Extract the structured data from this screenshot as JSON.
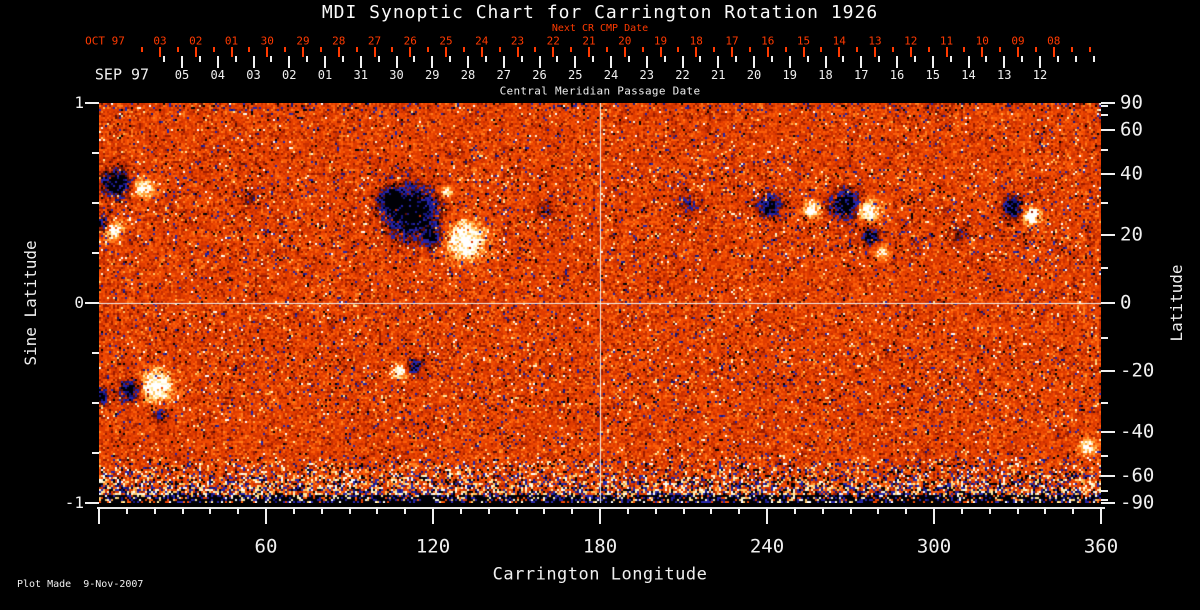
{
  "title": "MDI Synoptic Chart for Carrington Rotation 1926",
  "colors": {
    "axis_red": "#ff3a00",
    "text": "#f0f0f0",
    "background": "#000000",
    "gridline": "#f0f0f0"
  },
  "top_axis_next": {
    "label": "Next CR CMP Date",
    "month_label": "OCT 97",
    "tick_labels": [
      "03",
      "02",
      "01",
      "30",
      "29",
      "28",
      "27",
      "26",
      "25",
      "24",
      "23",
      "22",
      "21",
      "20",
      "19",
      "18",
      "17",
      "16",
      "15",
      "14",
      "13",
      "12",
      "11",
      "10",
      "09",
      "08"
    ]
  },
  "top_axis_cmp": {
    "title": "Central Meridian Passage Date",
    "month_label": "SEP 97",
    "tick_labels": [
      "05",
      "04",
      "03",
      "02",
      "01",
      "31",
      "30",
      "29",
      "28",
      "27",
      "26",
      "25",
      "24",
      "23",
      "22",
      "21",
      "20",
      "19",
      "18",
      "17",
      "16",
      "15",
      "14",
      "13",
      "12"
    ]
  },
  "left_axis": {
    "title": "Sine Latitude",
    "tick_labels": [
      "1",
      "0",
      "-1"
    ],
    "tick_values": [
      1,
      0,
      -1
    ],
    "minor_step": 0.25,
    "range": [
      -1,
      1
    ]
  },
  "right_axis": {
    "title": "Latitude",
    "tick_labels": [
      "90",
      "60",
      "40",
      "20",
      "0",
      "-20",
      "-40",
      "-60",
      "-90"
    ],
    "tick_values": [
      90,
      60,
      40,
      20,
      0,
      -20,
      -40,
      -60,
      -90
    ],
    "minor_step_deg": 10
  },
  "bottom_axis": {
    "title": "Carrington Longitude",
    "tick_labels": [
      "60",
      "120",
      "180",
      "240",
      "300",
      "360"
    ],
    "tick_values": [
      60,
      120,
      180,
      240,
      300,
      360
    ],
    "minor_step_deg": 10,
    "range": [
      0,
      360
    ]
  },
  "footer": {
    "plot_made": "Plot Made  9-Nov-2007"
  },
  "chart_data": {
    "type": "heatmap",
    "description": "Full-Sun synoptic magnetogram: line-of-sight magnetic field vs Carrington longitude and sine latitude. Quiet-Sun salt-and-pepper noise in red/orange; negative polarity shown black/navy, positive polarity shown white/yellow.",
    "x_axis": {
      "label": "Carrington Longitude",
      "range": [
        0,
        360
      ]
    },
    "y_axis": {
      "label": "Sine Latitude",
      "range": [
        -1,
        1
      ]
    },
    "gridlines": {
      "vertical_at_lon": 180,
      "horizontal_at_sin_lat": 0,
      "color": "#f0f0f0"
    },
    "palette": {
      "strong_negative": "#000006",
      "negative": "#2525a8",
      "weak_negative": "#9c1c00",
      "quiet": "#e03c00",
      "weak_positive": "#ff7d1c",
      "positive": "#ffc968",
      "strong_positive": "#ffffff"
    },
    "polar_noise_band_sin_lat": [
      -1.0,
      -0.77
    ],
    "active_regions": [
      {
        "lon": 6.1,
        "sin_lat": 0.6,
        "radius_deg": 4.7,
        "strength": -2.0
      },
      {
        "lon": 16.2,
        "sin_lat": 0.575,
        "radius_deg": 3.2,
        "strength": 1.6
      },
      {
        "lon": 1.8,
        "sin_lat": 0.395,
        "radius_deg": 2.9,
        "strength": -1.5
      },
      {
        "lon": 5.0,
        "sin_lat": 0.37,
        "radius_deg": 3.2,
        "strength": 1.7
      },
      {
        "lon": 112.4,
        "sin_lat": 0.455,
        "radius_deg": 8.6,
        "strength": -2.2
      },
      {
        "lon": 104.9,
        "sin_lat": 0.52,
        "radius_deg": 4.0,
        "strength": -1.4
      },
      {
        "lon": 119.3,
        "sin_lat": 0.325,
        "radius_deg": 3.2,
        "strength": -1.2
      },
      {
        "lon": 131.8,
        "sin_lat": 0.31,
        "radius_deg": 6.5,
        "strength": 1.9
      },
      {
        "lon": 124.7,
        "sin_lat": 0.555,
        "radius_deg": 2.2,
        "strength": 1.2
      },
      {
        "lon": 241.1,
        "sin_lat": 0.485,
        "radius_deg": 4.0,
        "strength": -1.5
      },
      {
        "lon": 256.2,
        "sin_lat": 0.465,
        "radius_deg": 2.9,
        "strength": 1.4
      },
      {
        "lon": 268.0,
        "sin_lat": 0.495,
        "radius_deg": 4.7,
        "strength": -1.9
      },
      {
        "lon": 276.6,
        "sin_lat": 0.46,
        "radius_deg": 3.6,
        "strength": 1.7
      },
      {
        "lon": 277.4,
        "sin_lat": 0.335,
        "radius_deg": 3.2,
        "strength": -1.3
      },
      {
        "lon": 281.3,
        "sin_lat": 0.25,
        "radius_deg": 2.2,
        "strength": 1.2
      },
      {
        "lon": 328.4,
        "sin_lat": 0.48,
        "radius_deg": 3.6,
        "strength": -1.6
      },
      {
        "lon": 335.2,
        "sin_lat": 0.435,
        "radius_deg": 2.9,
        "strength": 1.9
      },
      {
        "lon": 20.8,
        "sin_lat": -0.415,
        "radius_deg": 5.4,
        "strength": 1.7
      },
      {
        "lon": 11.1,
        "sin_lat": -0.44,
        "radius_deg": 3.6,
        "strength": -1.6
      },
      {
        "lon": 0.4,
        "sin_lat": -0.465,
        "radius_deg": 2.9,
        "strength": -1.7
      },
      {
        "lon": 22.3,
        "sin_lat": -0.565,
        "radius_deg": 2.5,
        "strength": -0.9
      },
      {
        "lon": 107.8,
        "sin_lat": -0.34,
        "radius_deg": 2.5,
        "strength": 1.5
      },
      {
        "lon": 113.2,
        "sin_lat": -0.32,
        "radius_deg": 2.5,
        "strength": -1.3
      },
      {
        "lon": 212.4,
        "sin_lat": 0.49,
        "radius_deg": 4.3,
        "strength": -0.6
      },
      {
        "lon": 309.4,
        "sin_lat": 0.34,
        "radius_deg": 3.6,
        "strength": -0.5
      },
      {
        "lon": 54.3,
        "sin_lat": 0.515,
        "radius_deg": 3.6,
        "strength": -0.45
      },
      {
        "lon": 160.3,
        "sin_lat": 0.465,
        "radius_deg": 3.2,
        "strength": -0.5
      },
      {
        "lon": 355.3,
        "sin_lat": -0.725,
        "radius_deg": 3.2,
        "strength": 1.2
      }
    ]
  }
}
